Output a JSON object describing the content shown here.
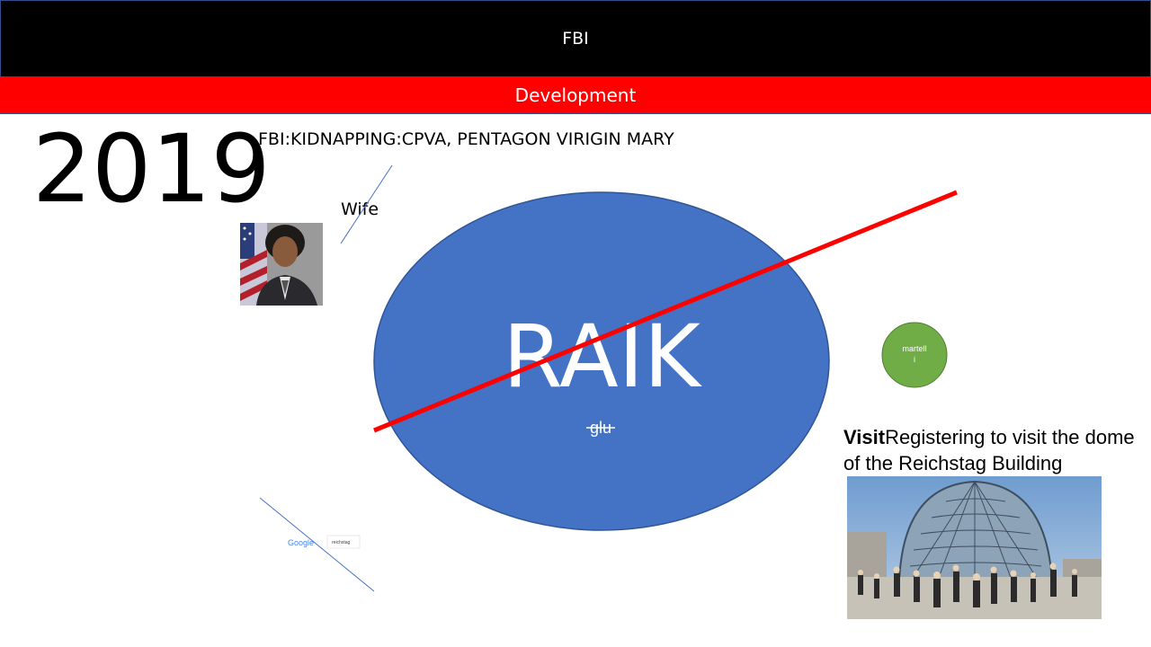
{
  "header": {
    "title": "FBI"
  },
  "subheader": {
    "title": "Development"
  },
  "slide": {
    "year": "2019",
    "headline": "FBI:KIDNAPPING:CPVA, PENTAGON VIRIGIN MARY",
    "wife_label": "Wife",
    "ellipse": {
      "label": "RAIK",
      "sublabel": "glu",
      "color": "#4472c4"
    },
    "circle": {
      "label_line1": "martell",
      "label_line2": "i",
      "color": "#70ad47"
    },
    "visit": {
      "bold": "Visit",
      "line1_rest": "Registering to visit the dome",
      "line2": "of the Reichstag Building"
    },
    "google_snippet": {
      "logo": "Google",
      "query": "reichstag"
    },
    "strike_color": "#ff0000"
  }
}
